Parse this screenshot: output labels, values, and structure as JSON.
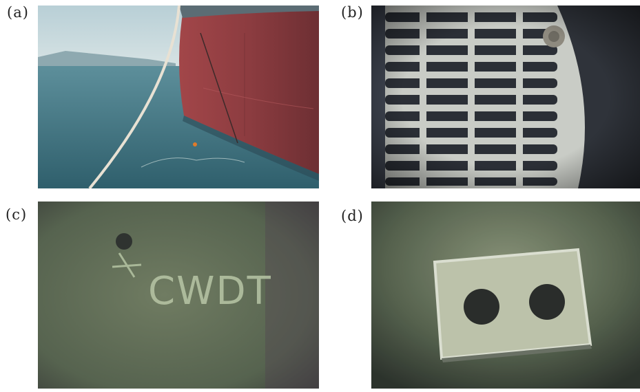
{
  "figure": {
    "panels": [
      {
        "label": "(a)",
        "scene": "ship hull at waterline"
      },
      {
        "label": "(b)",
        "scene": "underwater sea chest grating"
      },
      {
        "label": "(c)",
        "scene": "underwater hull marking"
      },
      {
        "label": "(d)",
        "scene": "underwater anode block"
      }
    ],
    "hull_marking_text": "CWDT"
  },
  "colors": {
    "hull_red": "#8a3a3c",
    "sea_blue": "#3c6f80",
    "murky_green": "#5d6b52",
    "grating": "#d6d9cf"
  }
}
